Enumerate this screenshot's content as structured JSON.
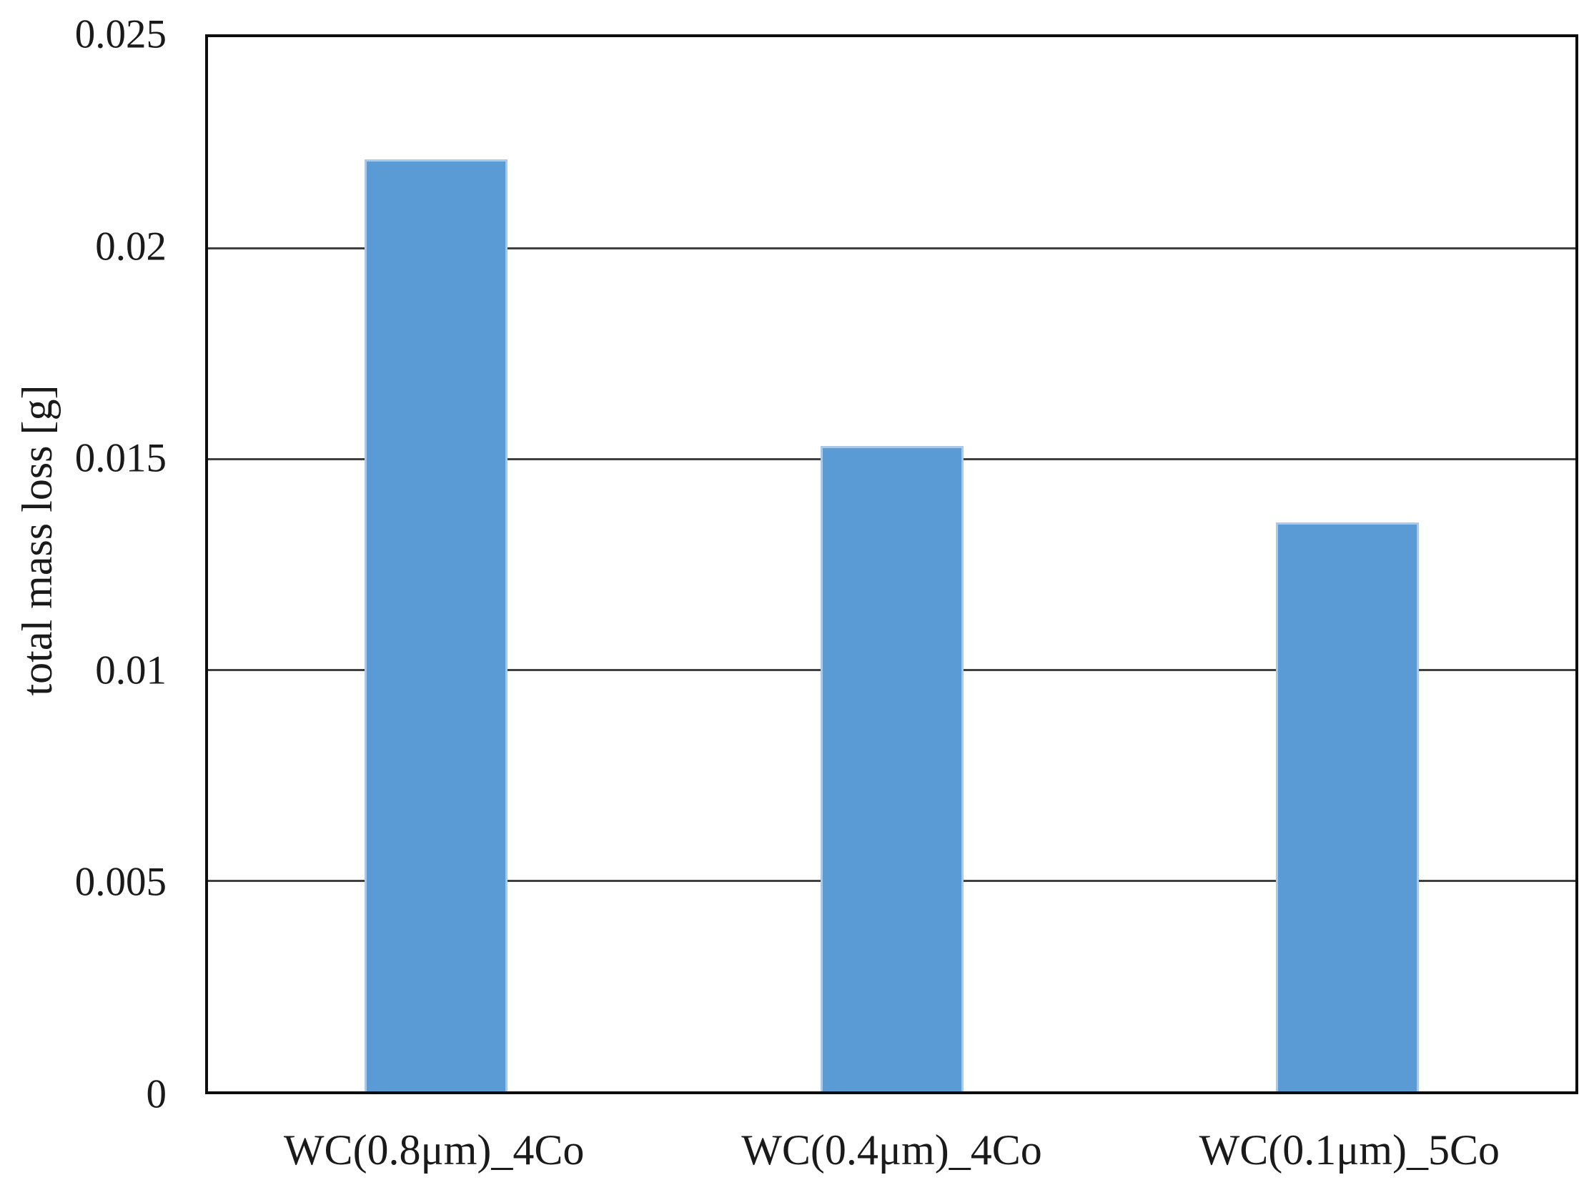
{
  "chart_data": {
    "type": "bar",
    "title": "",
    "categories": [
      "WC(0.8μm)_4Co",
      "WC(0.4μm)_4Co",
      "WC(0.1μm)_5Co"
    ],
    "values": [
      0.0221,
      0.0153,
      0.0135
    ],
    "xlabel": "",
    "ylabel": "total mass loss [g]",
    "ylim": [
      0,
      0.025
    ],
    "ytick_step": 0.005,
    "yticks": [
      {
        "value": 0,
        "label": "0"
      },
      {
        "value": 0.005,
        "label": "0.005"
      },
      {
        "value": 0.01,
        "label": "0.01"
      },
      {
        "value": 0.015,
        "label": "0.015"
      },
      {
        "value": 0.02,
        "label": "0.02"
      },
      {
        "value": 0.025,
        "label": "0.025"
      }
    ],
    "grid": true,
    "legend": "none",
    "colors": {
      "bar_fill": "#5B9BD5",
      "bar_border": "#A9C9EA",
      "gridline": "#404040",
      "axis_border": "#0d0d0d",
      "text": "#1a1a1a",
      "background": "#ffffff"
    }
  }
}
